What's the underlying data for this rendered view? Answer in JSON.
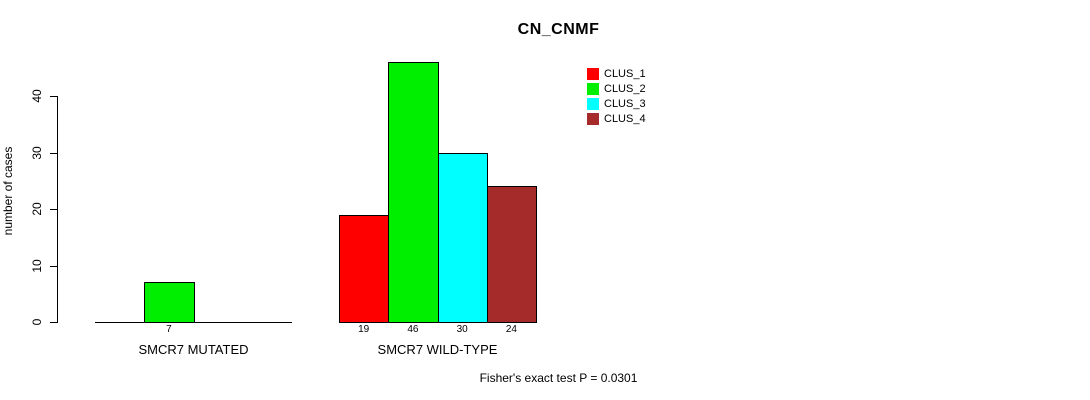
{
  "chart_data": {
    "type": "bar",
    "title": "CN_CNMF",
    "ylabel": "number of cases",
    "xlabel": "",
    "ylim": [
      0,
      40
    ],
    "yticks": [
      0,
      10,
      20,
      30,
      40
    ],
    "grid": false,
    "legend_position": "top-right",
    "categories": [
      "SMCR7 MUTATED",
      "SMCR7 WILD-TYPE"
    ],
    "series": [
      {
        "name": "CLUS_1",
        "color": "#FF0000",
        "values": [
          0,
          19
        ]
      },
      {
        "name": "CLUS_2",
        "color": "#00EE00",
        "values": [
          7,
          46
        ]
      },
      {
        "name": "CLUS_3",
        "color": "#00FFFF",
        "values": [
          0,
          30
        ]
      },
      {
        "name": "CLUS_4",
        "color": "#A52A2A",
        "values": [
          0,
          24
        ]
      }
    ],
    "bar_value_labels": {
      "SMCR7 MUTATED": [
        "7"
      ],
      "SMCR7 WILD-TYPE": [
        "19",
        "46",
        "30",
        "24"
      ]
    },
    "annotation": "Fisher's exact test P = 0.0301"
  },
  "colors": {
    "axis": "#000000",
    "text": "#000000",
    "background": "#FFFFFF"
  }
}
